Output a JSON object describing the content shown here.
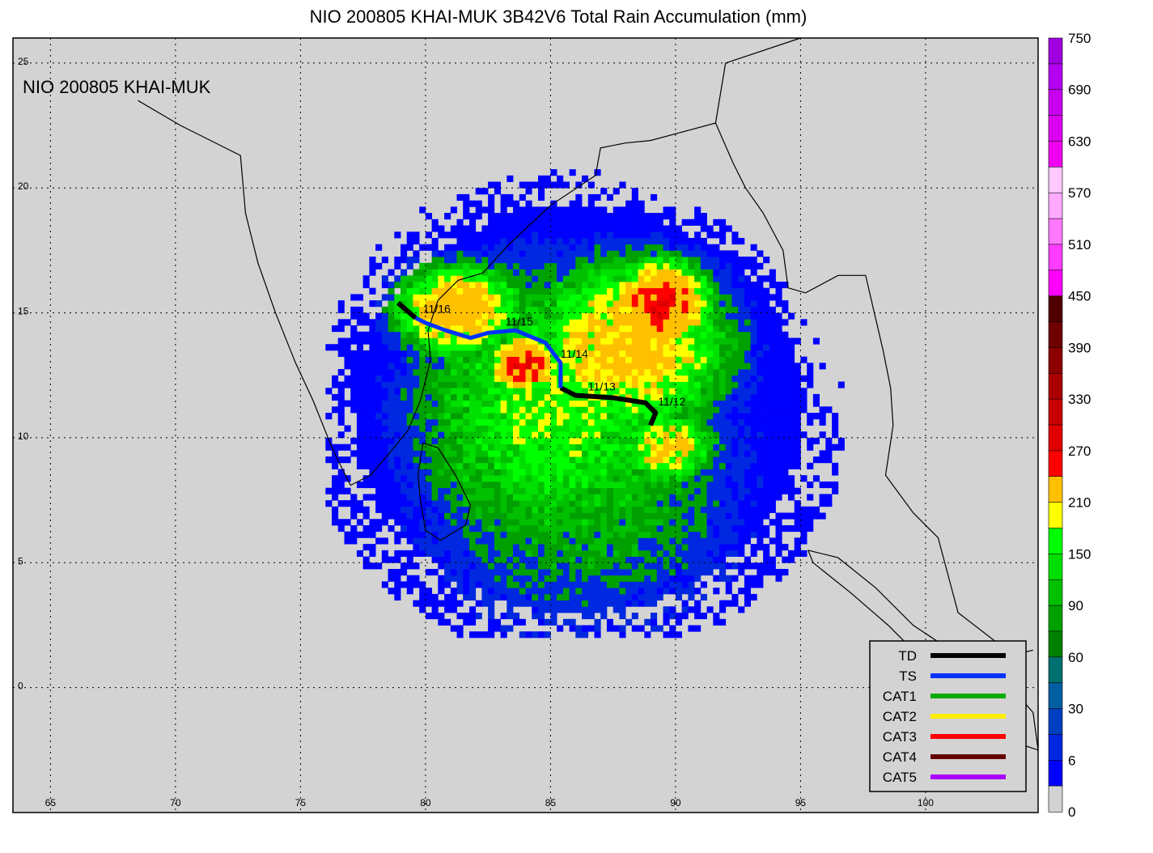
{
  "title": "NIO 200805 KHAI-MUK 3B42V6 Total Rain Accumulation (mm)",
  "inset_label": "NIO 200805 KHAI-MUK",
  "map": {
    "lon_range": [
      63.5,
      104.5
    ],
    "lat_range": [
      -5,
      26
    ],
    "lon_ticks": [
      "65",
      "70",
      "75",
      "80",
      "85",
      "90",
      "95",
      "100"
    ],
    "lat_ticks": [
      "25",
      "20",
      "15",
      "10",
      "5",
      "0"
    ],
    "background_color": "#d3d3d3",
    "grid": true
  },
  "colorbar": {
    "labels": [
      "750",
      "690",
      "630",
      "570",
      "510",
      "450",
      "390",
      "330",
      "270",
      "210",
      "150",
      "90",
      "60",
      "30",
      "6",
      "0"
    ],
    "colors": [
      "#a000e0",
      "#b400f0",
      "#c800f0",
      "#dc00f0",
      "#f000f0",
      "#ffc8ff",
      "#ffaaff",
      "#ff78ff",
      "#ff3cff",
      "#ff00ff",
      "#500000",
      "#6e0000",
      "#8c0000",
      "#aa0000",
      "#c80000",
      "#e00000",
      "#ff0000",
      "#ffc000",
      "#ffff00",
      "#00ff00",
      "#00e000",
      "#00c000",
      "#00a000",
      "#008000",
      "#007070",
      "#005fa0",
      "#0040c0",
      "#0028e0",
      "#0000ff",
      "#d3d3d3"
    ]
  },
  "legend": {
    "items": [
      {
        "label": "TD",
        "color": "#000000"
      },
      {
        "label": "TS",
        "color": "#0033ff"
      },
      {
        "label": "CAT1",
        "color": "#00aa00"
      },
      {
        "label": "CAT2",
        "color": "#ffee00"
      },
      {
        "label": "CAT3",
        "color": "#ff0000"
      },
      {
        "label": "CAT4",
        "color": "#660000"
      },
      {
        "label": "CAT5",
        "color": "#aa00ff"
      }
    ]
  },
  "track": {
    "dates": [
      "11/12",
      "11/13",
      "11/14",
      "11/15",
      "11/16"
    ],
    "points_td_start": [
      [
        89.0,
        10.5
      ],
      [
        89.2,
        11.0
      ],
      [
        88.8,
        11.4
      ],
      [
        87.5,
        11.6
      ],
      [
        86.0,
        11.7
      ],
      [
        85.4,
        12.0
      ]
    ],
    "points_ts": [
      [
        85.4,
        12.0
      ],
      [
        85.4,
        13.0
      ],
      [
        84.8,
        13.8
      ],
      [
        83.6,
        14.3
      ],
      [
        82.5,
        14.2
      ],
      [
        81.8,
        14.0
      ],
      [
        80.8,
        14.3
      ],
      [
        80.0,
        14.6
      ],
      [
        79.6,
        14.8
      ]
    ],
    "points_td_end": [
      [
        79.6,
        14.8
      ],
      [
        78.9,
        15.4
      ]
    ],
    "date_positions": [
      [
        89.3,
        11.3
      ],
      [
        86.5,
        11.9
      ],
      [
        85.4,
        13.2
      ],
      [
        83.2,
        14.5
      ],
      [
        79.9,
        15.0
      ]
    ]
  },
  "rain_field": {
    "center": [
      86.0,
      11.0
    ],
    "blobs": [
      {
        "lon": 83.8,
        "lat": 12.8,
        "level": 200,
        "rx": 1.2,
        "ry": 1.0
      },
      {
        "lon": 89.3,
        "lat": 15.2,
        "level": 190,
        "rx": 1.8,
        "ry": 1.6
      },
      {
        "lon": 81.2,
        "lat": 15.0,
        "level": 120,
        "rx": 2.5,
        "ry": 1.8
      },
      {
        "lon": 88.0,
        "lat": 13.5,
        "level": 110,
        "rx": 4.0,
        "ry": 3.5
      },
      {
        "lon": 89.5,
        "lat": 9.5,
        "level": 95,
        "rx": 2.0,
        "ry": 1.5
      },
      {
        "lon": 85.0,
        "lat": 11.0,
        "level": 70,
        "rx": 6.0,
        "ry": 6.0
      },
      {
        "lon": 86.0,
        "lat": 8.5,
        "level": 45,
        "rx": 7.5,
        "ry": 7.0
      },
      {
        "lon": 86.0,
        "lat": 4.0,
        "level": 20,
        "rx": 5.0,
        "ry": 2.0
      }
    ]
  }
}
